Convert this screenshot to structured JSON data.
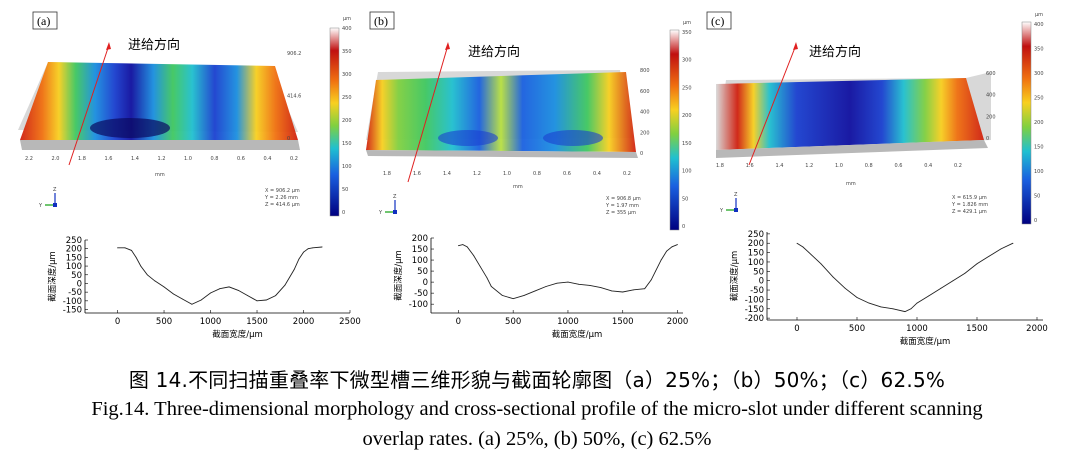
{
  "panels": [
    {
      "id": "a",
      "label": "(a)",
      "direction_label": "进给方向",
      "scale_unit": "μm",
      "colorbar_ticks": [
        "400",
        "350",
        "300",
        "250",
        "200",
        "150",
        "100",
        "50",
        "0"
      ],
      "surface_axis_ticks": [
        "2.2",
        "2.0",
        "1.8",
        "1.6",
        "1.4",
        "1.2",
        "1.0",
        "0.8",
        "0.6",
        "0.4",
        "0.2"
      ],
      "surface_axis_unit": "mm",
      "side_ticks": [
        "906.2",
        "414.6",
        "0"
      ],
      "axis_triad": {
        "x": "X",
        "y": "Y",
        "z": "Z"
      },
      "readout": [
        "X = 906.2 μm",
        "Y = 2.26 mm",
        "Z = 414.6 μm"
      ],
      "colors": [
        "#1010a0",
        "#1a40d0",
        "#1a8fe0",
        "#20c0d0",
        "#40c860",
        "#b8e040",
        "#f8d020",
        "#f07010",
        "#d02010"
      ]
    },
    {
      "id": "b",
      "label": "(b)",
      "direction_label": "进给方向",
      "scale_unit": "μm",
      "colorbar_ticks": [
        "350",
        "300",
        "250",
        "200",
        "150",
        "100",
        "50",
        "0"
      ],
      "surface_axis_ticks": [
        "1.8",
        "1.6",
        "1.4",
        "1.2",
        "1.0",
        "0.8",
        "0.6",
        "0.4",
        "0.2"
      ],
      "surface_axis_unit": "mm",
      "side_ticks": [
        "800",
        "600",
        "400",
        "200",
        "0"
      ],
      "axis_triad": {
        "x": "X",
        "y": "Y",
        "z": "Z"
      },
      "readout": [
        "X = 906.8 μm",
        "Y = 1.97 mm",
        "Z = 355 μm"
      ],
      "colors": [
        "#1010a0",
        "#1a40d0",
        "#1a8fe0",
        "#20c0d0",
        "#40c860",
        "#b8e040",
        "#f8d020",
        "#f07010",
        "#d02010"
      ]
    },
    {
      "id": "c",
      "label": "(c)",
      "direction_label": "进给方向",
      "scale_unit": "μm",
      "colorbar_ticks": [
        "400",
        "350",
        "300",
        "250",
        "200",
        "150",
        "100",
        "50",
        "0"
      ],
      "surface_axis_ticks": [
        "1.8",
        "1.6",
        "1.4",
        "1.2",
        "1.0",
        "0.8",
        "0.6",
        "0.4",
        "0.2"
      ],
      "surface_axis_unit": "mm",
      "side_ticks": [
        "600",
        "400",
        "200",
        "0"
      ],
      "axis_triad": {
        "x": "X",
        "y": "Y",
        "z": "Z"
      },
      "readout": [
        "X = 615.9 μm",
        "Y = 1.826 mm",
        "Z = 429.1 μm"
      ],
      "colors": [
        "#1010a0",
        "#1a40d0",
        "#1a8fe0",
        "#20c0d0",
        "#40c860",
        "#b8e040",
        "#f8d020",
        "#f07010",
        "#d02010"
      ]
    }
  ],
  "chart_data": [
    {
      "type": "line",
      "panel": "a",
      "title": "",
      "xlabel": "截面宽度/μm",
      "ylabel": "截面深度/μm",
      "xlim": [
        -350,
        2500
      ],
      "ylim": [
        -170,
        250
      ],
      "xticks": [
        "0",
        "500",
        "1000",
        "1500",
        "2000",
        "2500"
      ],
      "xtick_values": [
        0,
        500,
        1000,
        1500,
        2000,
        2500
      ],
      "yticks": [
        "250",
        "200",
        "150",
        "100",
        "50",
        "0",
        "-50",
        "-100",
        "-150"
      ],
      "ytick_values": [
        250,
        200,
        150,
        100,
        50,
        0,
        -50,
        -100,
        -150
      ],
      "x": [
        0,
        80,
        150,
        200,
        250,
        320,
        400,
        500,
        600,
        700,
        800,
        900,
        1000,
        1100,
        1200,
        1300,
        1400,
        1500,
        1600,
        1700,
        1800,
        1900,
        1950,
        2000,
        2050,
        2100,
        2200
      ],
      "y": [
        205,
        205,
        190,
        150,
        100,
        50,
        15,
        -20,
        -60,
        -90,
        -120,
        -95,
        -55,
        -30,
        -20,
        -40,
        -70,
        -100,
        -95,
        -70,
        -10,
        80,
        140,
        180,
        200,
        205,
        210
      ]
    },
    {
      "type": "line",
      "panel": "b",
      "title": "",
      "xlabel": "截面宽度/μm",
      "ylabel": "截面深度/μm",
      "xlim": [
        -250,
        2050
      ],
      "ylim": [
        -140,
        200
      ],
      "xticks": [
        "0",
        "500",
        "1000",
        "1500",
        "2000"
      ],
      "xtick_values": [
        0,
        500,
        1000,
        1500,
        2000
      ],
      "yticks": [
        "200",
        "150",
        "100",
        "50",
        "0",
        "-50",
        "-100"
      ],
      "ytick_values": [
        200,
        150,
        100,
        50,
        0,
        -50,
        -100
      ],
      "x": [
        0,
        40,
        80,
        140,
        200,
        260,
        300,
        400,
        500,
        600,
        700,
        800,
        900,
        1000,
        1100,
        1200,
        1300,
        1400,
        1500,
        1600,
        1700,
        1760,
        1800,
        1850,
        1900,
        1950,
        2000
      ],
      "y": [
        165,
        170,
        160,
        120,
        70,
        20,
        -20,
        -60,
        -75,
        -60,
        -40,
        -20,
        -5,
        0,
        -10,
        -15,
        -25,
        -40,
        -45,
        -35,
        -30,
        10,
        50,
        100,
        140,
        160,
        170
      ]
    },
    {
      "type": "line",
      "panel": "c",
      "title": "",
      "xlabel": "截面宽度/μm",
      "ylabel": "截面深度/μm",
      "xlim": [
        -250,
        2050
      ],
      "ylim": [
        -210,
        260
      ],
      "xticks": [
        "0",
        "500",
        "1000",
        "1500",
        "2000"
      ],
      "xtick_values": [
        0,
        500,
        1000,
        1500,
        2000
      ],
      "yticks": [
        "250",
        "200",
        "150",
        "100",
        "50",
        "0",
        "-50",
        "-100",
        "-150",
        "-200"
      ],
      "ytick_values": [
        250,
        200,
        150,
        100,
        50,
        0,
        -50,
        -100,
        -150,
        -200
      ],
      "x": [
        0,
        50,
        100,
        150,
        200,
        300,
        400,
        500,
        600,
        700,
        800,
        900,
        950,
        1000,
        1100,
        1200,
        1300,
        1400,
        1500,
        1600,
        1700,
        1800
      ],
      "y": [
        200,
        180,
        150,
        120,
        90,
        20,
        -40,
        -90,
        -120,
        -140,
        -150,
        -165,
        -150,
        -120,
        -80,
        -40,
        0,
        40,
        90,
        130,
        170,
        200
      ]
    }
  ],
  "captions": {
    "cn": "图 14.不同扫描重叠率下微型槽三维形貌与截面轮廓图（a）25%；（b）50%；（c）62.5%",
    "en_line1": "Fig.14. Three-dimensional morphology and cross-sectional profile of the micro-slot under different scanning",
    "en_line2": "overlap rates.    (a) 25%, (b) 50%, (c) 62.5%"
  }
}
